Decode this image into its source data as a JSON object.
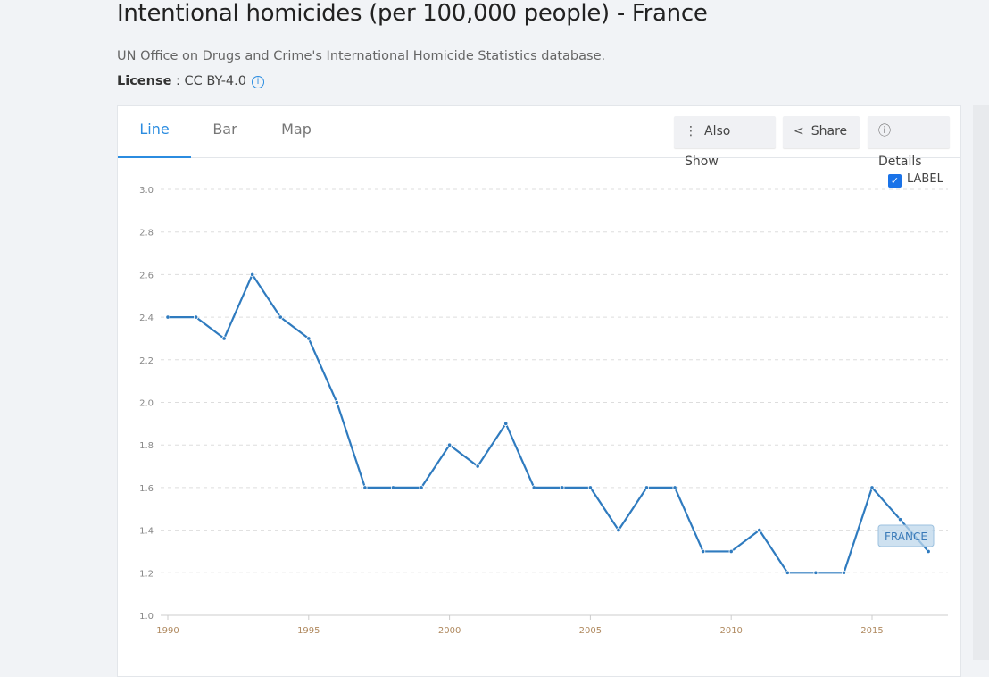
{
  "title": "Intentional homicides (per 100,000 people) - France",
  "source": "UN Office on Drugs and Crime's International Homicide Statistics database.",
  "license_label": "License",
  "license_value": ": CC BY-4.0",
  "tabs": [
    "Line",
    "Bar",
    "Map"
  ],
  "buttons": {
    "also_show": "Also Show",
    "share": "Share",
    "details": "Details"
  },
  "label_toggle": "LABEL",
  "colors": {
    "line": "#2f7bbf",
    "accent": "#2b8ce0"
  },
  "chart_data": {
    "type": "line",
    "title": "Intentional homicides (per 100,000 people) - France",
    "x": [
      1990,
      1991,
      1992,
      1993,
      1994,
      1995,
      1996,
      1997,
      1998,
      1999,
      2000,
      2001,
      2002,
      2003,
      2004,
      2005,
      2006,
      2007,
      2008,
      2009,
      2010,
      2011,
      2012,
      2013,
      2014,
      2015,
      2016,
      2017
    ],
    "series": [
      {
        "name": "FRANCE",
        "values": [
          2.4,
          2.4,
          2.3,
          2.6,
          2.4,
          2.3,
          2.0,
          1.6,
          1.6,
          1.6,
          1.8,
          1.7,
          1.9,
          1.6,
          1.6,
          1.6,
          1.4,
          1.6,
          1.6,
          1.3,
          1.3,
          1.4,
          1.2,
          1.2,
          1.2,
          1.6,
          1.45,
          1.3
        ]
      }
    ],
    "ylim": [
      1.0,
      3.0
    ],
    "yticks": [
      "1.0",
      "1.2",
      "1.4",
      "1.6",
      "1.8",
      "2.0",
      "2.2",
      "2.4",
      "2.6",
      "2.8",
      "3.0"
    ],
    "xticks": [
      "1990",
      "1995",
      "2000",
      "2005",
      "2010",
      "2015"
    ],
    "grid": true,
    "series_label": "FRANCE"
  }
}
